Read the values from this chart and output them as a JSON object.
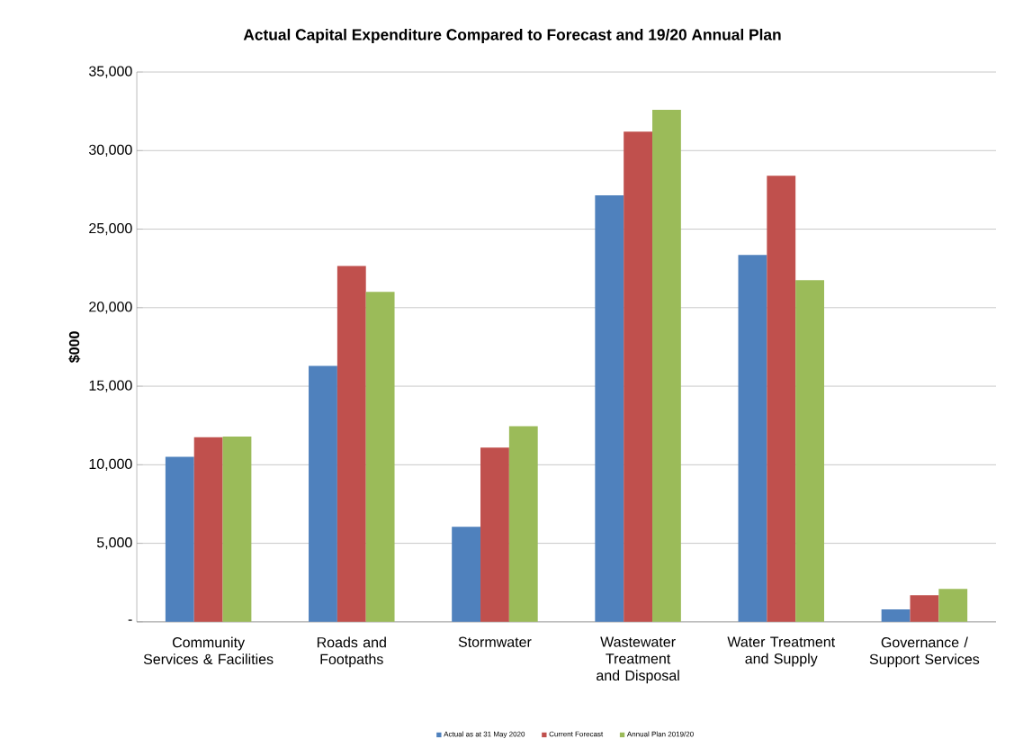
{
  "chart_data": {
    "type": "bar",
    "title": "Actual Capital Expenditure Compared to Forecast and 19/20 Annual Plan",
    "ylabel": "$000",
    "categories": [
      "Community Services & Facilities",
      "Roads and Footpaths",
      "Stormwater",
      "Wastewater Treatment and Disposal",
      "Water Treatment and Supply",
      "Governance / Support Services"
    ],
    "series": [
      {
        "name": "Actual as at 31 May 2020",
        "color": "#4f81bd",
        "values": [
          10500,
          16300,
          6050,
          27150,
          23350,
          800
        ]
      },
      {
        "name": "Current Forecast",
        "color": "#c0504d",
        "values": [
          11750,
          22650,
          11100,
          31200,
          28400,
          1700
        ]
      },
      {
        "name": "Annual Plan 2019/20",
        "color": "#9bbb59",
        "values": [
          11800,
          21000,
          12450,
          32600,
          21750,
          2100
        ]
      }
    ],
    "ylim": [
      0,
      35000
    ],
    "yticks": [
      {
        "value": 0,
        "label": "-"
      },
      {
        "value": 5000,
        "label": "5,000"
      },
      {
        "value": 10000,
        "label": "10,000"
      },
      {
        "value": 15000,
        "label": "15,000"
      },
      {
        "value": 20000,
        "label": "20,000"
      },
      {
        "value": 25000,
        "label": "25,000"
      },
      {
        "value": 30000,
        "label": "30,000"
      },
      {
        "value": 35000,
        "label": "35,000"
      }
    ],
    "grid": "y",
    "legend": "bottom"
  }
}
